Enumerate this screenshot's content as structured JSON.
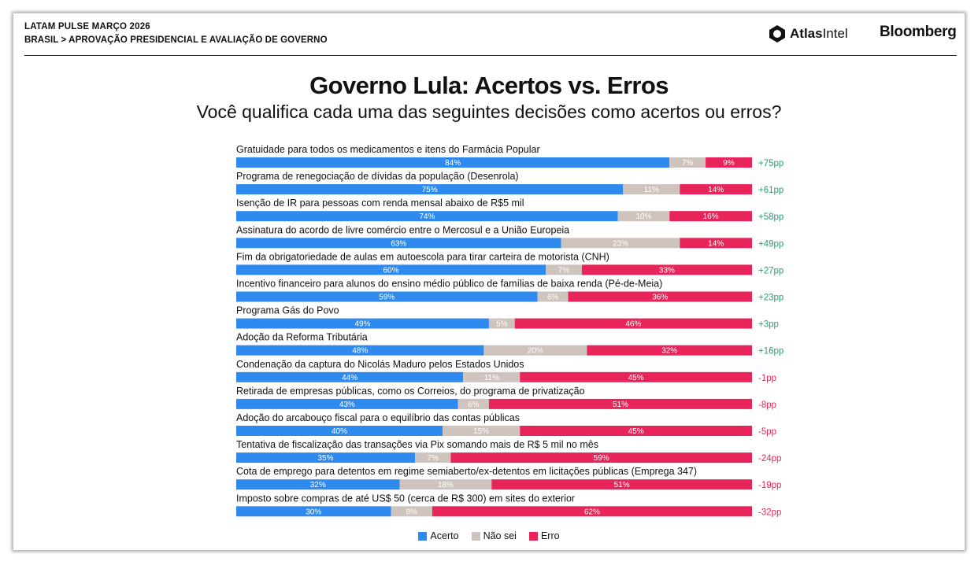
{
  "header": {
    "line1": "LATAM PULSE MARÇO 2026",
    "line2": "BRASIL > APROVAÇÃO PRESIDENCIAL E AVALIAÇÃO DE GOVERNO",
    "logo_atlas_bold": "Atlas",
    "logo_atlas_light": "Intel",
    "logo_bloomberg": "Bloomberg"
  },
  "colors": {
    "acerto": "#2f8af0",
    "nao_sei": "#cfc3bd",
    "erro": "#e8255a",
    "net_positive": "#2a9d72",
    "net_negative": "#e8255a"
  },
  "chart_data": {
    "type": "bar",
    "stacked": true,
    "orientation": "horizontal",
    "title": "Governo Lula: Acertos vs. Erros",
    "subtitle": "Você qualifica cada uma das seguintes decisões como acertos ou erros?",
    "xlim": [
      0,
      100
    ],
    "grid": false,
    "legend_position": "bottom-center",
    "series_names": [
      "Acerto",
      "Não sei",
      "Erro"
    ],
    "items": [
      {
        "label": "Gratuidade para todos os medicamentos e itens do Farmácia Popular",
        "acerto": 84,
        "nao_sei": 7,
        "erro": 9,
        "net": "+75pp"
      },
      {
        "label": "Programa de renegociação de dívidas da população (Desenrola)",
        "acerto": 75,
        "nao_sei": 11,
        "erro": 14,
        "net": "+61pp"
      },
      {
        "label": "Isenção de IR para pessoas com renda mensal abaixo de R$5 mil",
        "acerto": 74,
        "nao_sei": 10,
        "erro": 16,
        "net": "+58pp"
      },
      {
        "label": "Assinatura do acordo de livre comércio entre o Mercosul e a União Europeia",
        "acerto": 63,
        "nao_sei": 23,
        "erro": 14,
        "net": "+49pp"
      },
      {
        "label": "Fim da obrigatoriedade de aulas em autoescola para tirar carteira de motorista (CNH)",
        "acerto": 60,
        "nao_sei": 7,
        "erro": 33,
        "net": "+27pp"
      },
      {
        "label": "Incentivo financeiro para alunos do ensino médio público de famílias de baixa renda (Pé-de-Meia)",
        "acerto": 59,
        "nao_sei": 6,
        "erro": 36,
        "net": "+23pp"
      },
      {
        "label": "Programa Gás do Povo",
        "acerto": 49,
        "nao_sei": 5,
        "erro": 46,
        "net": "+3pp"
      },
      {
        "label": "Adoção da Reforma Tributária",
        "acerto": 48,
        "nao_sei": 20,
        "erro": 32,
        "net": "+16pp"
      },
      {
        "label": "Condenação da captura do Nicolás Maduro pelos Estados Unidos",
        "acerto": 44,
        "nao_sei": 11,
        "erro": 45,
        "net": "-1pp"
      },
      {
        "label": "Retirada de empresas públicas, como os Correios, do programa de privatização",
        "acerto": 43,
        "nao_sei": 6,
        "erro": 51,
        "net": "-8pp"
      },
      {
        "label": "Adoção do arcabouço fiscal para o equilíbrio das contas públicas",
        "acerto": 40,
        "nao_sei": 15,
        "erro": 45,
        "net": "-5pp"
      },
      {
        "label": "Tentativa de fiscalização das transações via Pix somando mais de R$ 5 mil no mês",
        "acerto": 35,
        "nao_sei": 7,
        "erro": 59,
        "net": "-24pp"
      },
      {
        "label": "Cota de emprego para detentos em regime semiaberto/ex-detentos em licitações públicas (Emprega 347)",
        "acerto": 32,
        "nao_sei": 18,
        "erro": 51,
        "net": "-19pp"
      },
      {
        "label": "Imposto sobre compras de até US$ 50 (cerca de R$ 300) em sites do exterior",
        "acerto": 30,
        "nao_sei": 8,
        "erro": 62,
        "net": "-32pp"
      }
    ]
  }
}
